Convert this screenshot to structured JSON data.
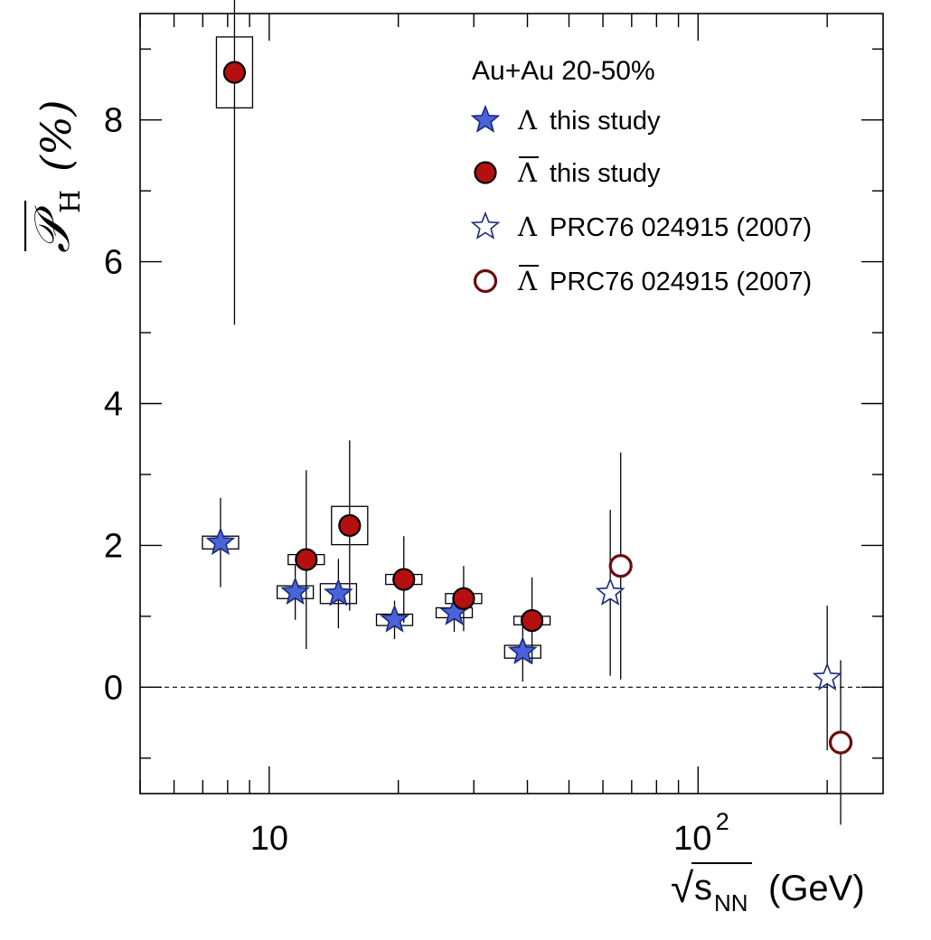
{
  "chart_data": {
    "type": "scatter",
    "x_scale": "log",
    "xlim": [
      5,
      270
    ],
    "ylim": [
      -1.5,
      9.5
    ],
    "y_ticks": [
      0,
      2,
      4,
      6,
      8
    ],
    "y_tick_labels": [
      "0",
      "2",
      "4",
      "6",
      "8"
    ],
    "x_major_ticks": [
      10,
      100
    ],
    "x_tick_labels": {
      "t10": "10",
      "t100_base": "10",
      "t100_exp": "2"
    },
    "xlabel": {
      "sqrt": "√",
      "s": "s",
      "sub": "NN",
      "unit": "(GeV)"
    },
    "ylabel": {
      "symbol": "𝒫",
      "sub": "H",
      "unit": "(%)"
    },
    "legend": {
      "header": "Au+Au 20-50%",
      "placement": "top-right",
      "entries": [
        {
          "series": "lambda_this",
          "symbol_char": "Λ",
          "overline": false,
          "text": "this study"
        },
        {
          "series": "antilambda_this",
          "symbol_char": "Λ",
          "overline": true,
          "text": "this study"
        },
        {
          "series": "lambda_prc",
          "symbol_char": "Λ",
          "overline": false,
          "text": "PRC76 024915 (2007)"
        },
        {
          "series": "antilambda_prc",
          "symbol_char": "Λ",
          "overline": true,
          "text": "PRC76 024915 (2007)"
        }
      ]
    },
    "zero_line": true,
    "series": [
      {
        "id": "lambda_this",
        "marker": "star",
        "filled": true,
        "color": "#4a63d8",
        "edge": "#1b2a7a",
        "points": [
          {
            "x": 7.7,
            "y": 2.04,
            "err": 0.63,
            "sys": 0.09
          },
          {
            "x": 11.5,
            "y": 1.34,
            "err": 0.39,
            "sys": 0.09
          },
          {
            "x": 14.5,
            "y": 1.32,
            "err": 0.49,
            "sys": 0.14
          },
          {
            "x": 19.6,
            "y": 0.95,
            "err": 0.27,
            "sys": 0.08
          },
          {
            "x": 27,
            "y": 1.05,
            "err": 0.27,
            "sys": 0.07
          },
          {
            "x": 39,
            "y": 0.5,
            "err": 0.42,
            "sys": 0.09
          }
        ]
      },
      {
        "id": "antilambda_this",
        "marker": "circle",
        "filled": true,
        "color": "#b50f0f",
        "edge": "#000000",
        "points": [
          {
            "x": 8.3,
            "y": 8.67,
            "err": 3.56,
            "sys": 0.5
          },
          {
            "x": 12.2,
            "y": 1.8,
            "err": 1.26,
            "sys": 0.07
          },
          {
            "x": 15.4,
            "y": 2.28,
            "err": 1.2,
            "sys": 0.27
          },
          {
            "x": 20.6,
            "y": 1.52,
            "err": 0.61,
            "sys": 0.07
          },
          {
            "x": 28.4,
            "y": 1.25,
            "err": 0.46,
            "sys": 0.07
          },
          {
            "x": 41,
            "y": 0.94,
            "err": 0.61,
            "sys": 0.06
          }
        ]
      },
      {
        "id": "lambda_prc",
        "marker": "star",
        "filled": false,
        "color": "#ffffff",
        "edge": "#1b2a7a",
        "points": [
          {
            "x": 62.4,
            "y": 1.33,
            "err": 1.17
          },
          {
            "x": 200,
            "y": 0.13,
            "err": 1.02
          }
        ]
      },
      {
        "id": "antilambda_prc",
        "marker": "circle",
        "filled": false,
        "color": "#ffffff",
        "edge": "#6b0d0d",
        "points": [
          {
            "x": 66,
            "y": 1.71,
            "err": 1.6
          },
          {
            "x": 215,
            "y": -0.78,
            "err": 1.16
          }
        ]
      }
    ]
  }
}
